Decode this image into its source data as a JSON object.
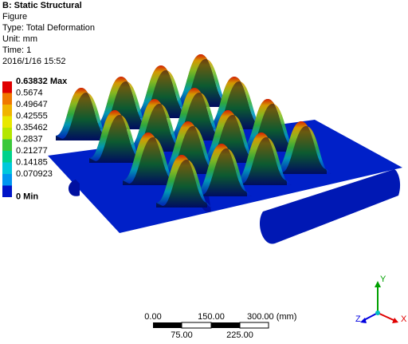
{
  "header": {
    "title": "B: Static Structural",
    "lines": [
      "Figure",
      "Type: Total Deformation",
      "Unit: mm",
      "Time: 1",
      "2016/1/16 15:52"
    ]
  },
  "legend": {
    "labels": [
      "0.63832 Max",
      "0.5674",
      "0.49647",
      "0.42555",
      "0.35462",
      "0.2837",
      "0.21277",
      "0.14185",
      "0.070923",
      "0 Min"
    ],
    "colors": [
      "#e00000",
      "#f07800",
      "#f0b400",
      "#e8e800",
      "#b4e600",
      "#3cc83c",
      "#00d28c",
      "#00c8dc",
      "#0096f0",
      "#0014c8"
    ]
  },
  "scale_bar": {
    "top_labels": [
      "0.00",
      "150.00",
      "300.00 (mm)"
    ],
    "bottom_labels": [
      "75.00",
      "225.00"
    ]
  },
  "triad": {
    "y": "Y",
    "z": "Z",
    "x": "X"
  }
}
